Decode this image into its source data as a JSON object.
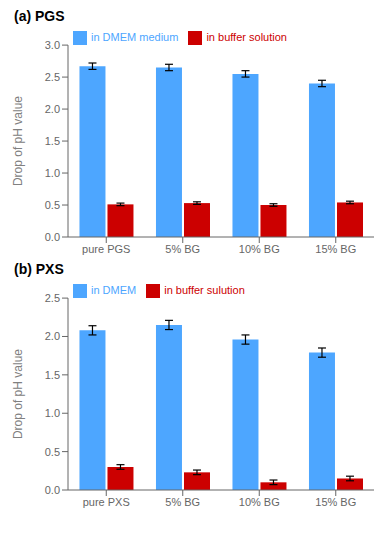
{
  "chart_data": [
    {
      "type": "bar",
      "title": "(a) PGS",
      "categories": [
        "pure PGS",
        "5% BG",
        "10% BG",
        "15% BG"
      ],
      "series": [
        {
          "name": "in DMEM medium",
          "color": "#4da6ff",
          "values": [
            2.67,
            2.65,
            2.55,
            2.4
          ],
          "errors": [
            0.05,
            0.05,
            0.05,
            0.05
          ]
        },
        {
          "name": "in buffer solution",
          "color": "#cc0000",
          "values": [
            0.51,
            0.53,
            0.5,
            0.54
          ],
          "errors": [
            0.02,
            0.02,
            0.02,
            0.02
          ]
        }
      ],
      "ylabel": "Drop of pH value",
      "ylim": [
        0,
        3.0
      ],
      "yticks": [
        {
          "value": 0,
          "label": "0.0"
        },
        0.5,
        {
          "value": 1,
          "label": "1.0"
        },
        1.5,
        {
          "value": 2,
          "label": "2.0"
        },
        2.5,
        {
          "value": 3,
          "label": "3.0"
        }
      ],
      "grid": false,
      "legend": "upper left"
    },
    {
      "type": "bar",
      "title": "(b) PXS",
      "categories": [
        "pure PXS",
        "5% BG",
        "10% BG",
        "15% BG"
      ],
      "series": [
        {
          "name": "in DMEM",
          "color": "#4da6ff",
          "values": [
            2.08,
            2.15,
            1.96,
            1.79
          ],
          "errors": [
            0.06,
            0.06,
            0.06,
            0.06
          ]
        },
        {
          "name": "in buffer sulution",
          "color": "#cc0000",
          "values": [
            0.3,
            0.23,
            0.1,
            0.15
          ],
          "errors": [
            0.03,
            0.03,
            0.03,
            0.03
          ]
        }
      ],
      "ylabel": "Drop of pH value",
      "ylim": [
        0,
        2.5
      ],
      "yticks": [
        {
          "value": 0,
          "label": "0.0"
        },
        0.5,
        {
          "value": 1,
          "label": "1.0"
        },
        1.5,
        {
          "value": 2,
          "label": "2.0"
        },
        2.5
      ],
      "grid": false,
      "legend": "upper left"
    }
  ]
}
